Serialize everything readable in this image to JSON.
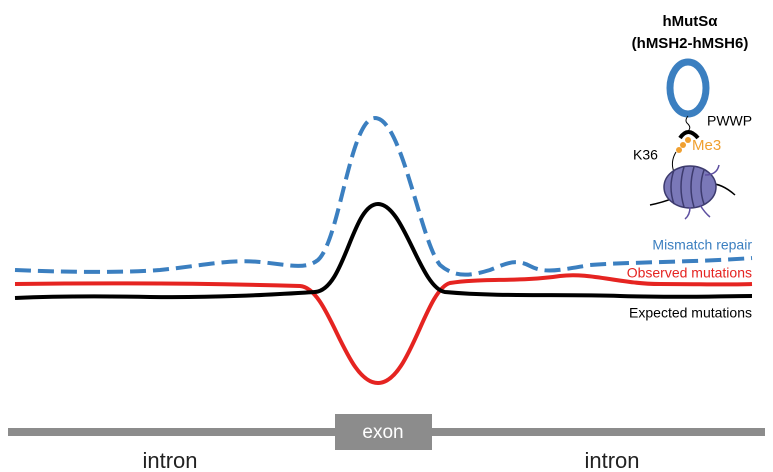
{
  "protein": {
    "name": "hMutSα",
    "subunits": "(hMSH2-hMSH6)",
    "domain": "PWWP",
    "mark": "Me3",
    "residue": "K36"
  },
  "legend": {
    "mismatch_repair": "Mismatch repair",
    "observed": "Observed mutations",
    "expected": "Expected mutations"
  },
  "gene": {
    "exon": "exon",
    "introns": [
      "intron",
      "intron"
    ]
  }
}
